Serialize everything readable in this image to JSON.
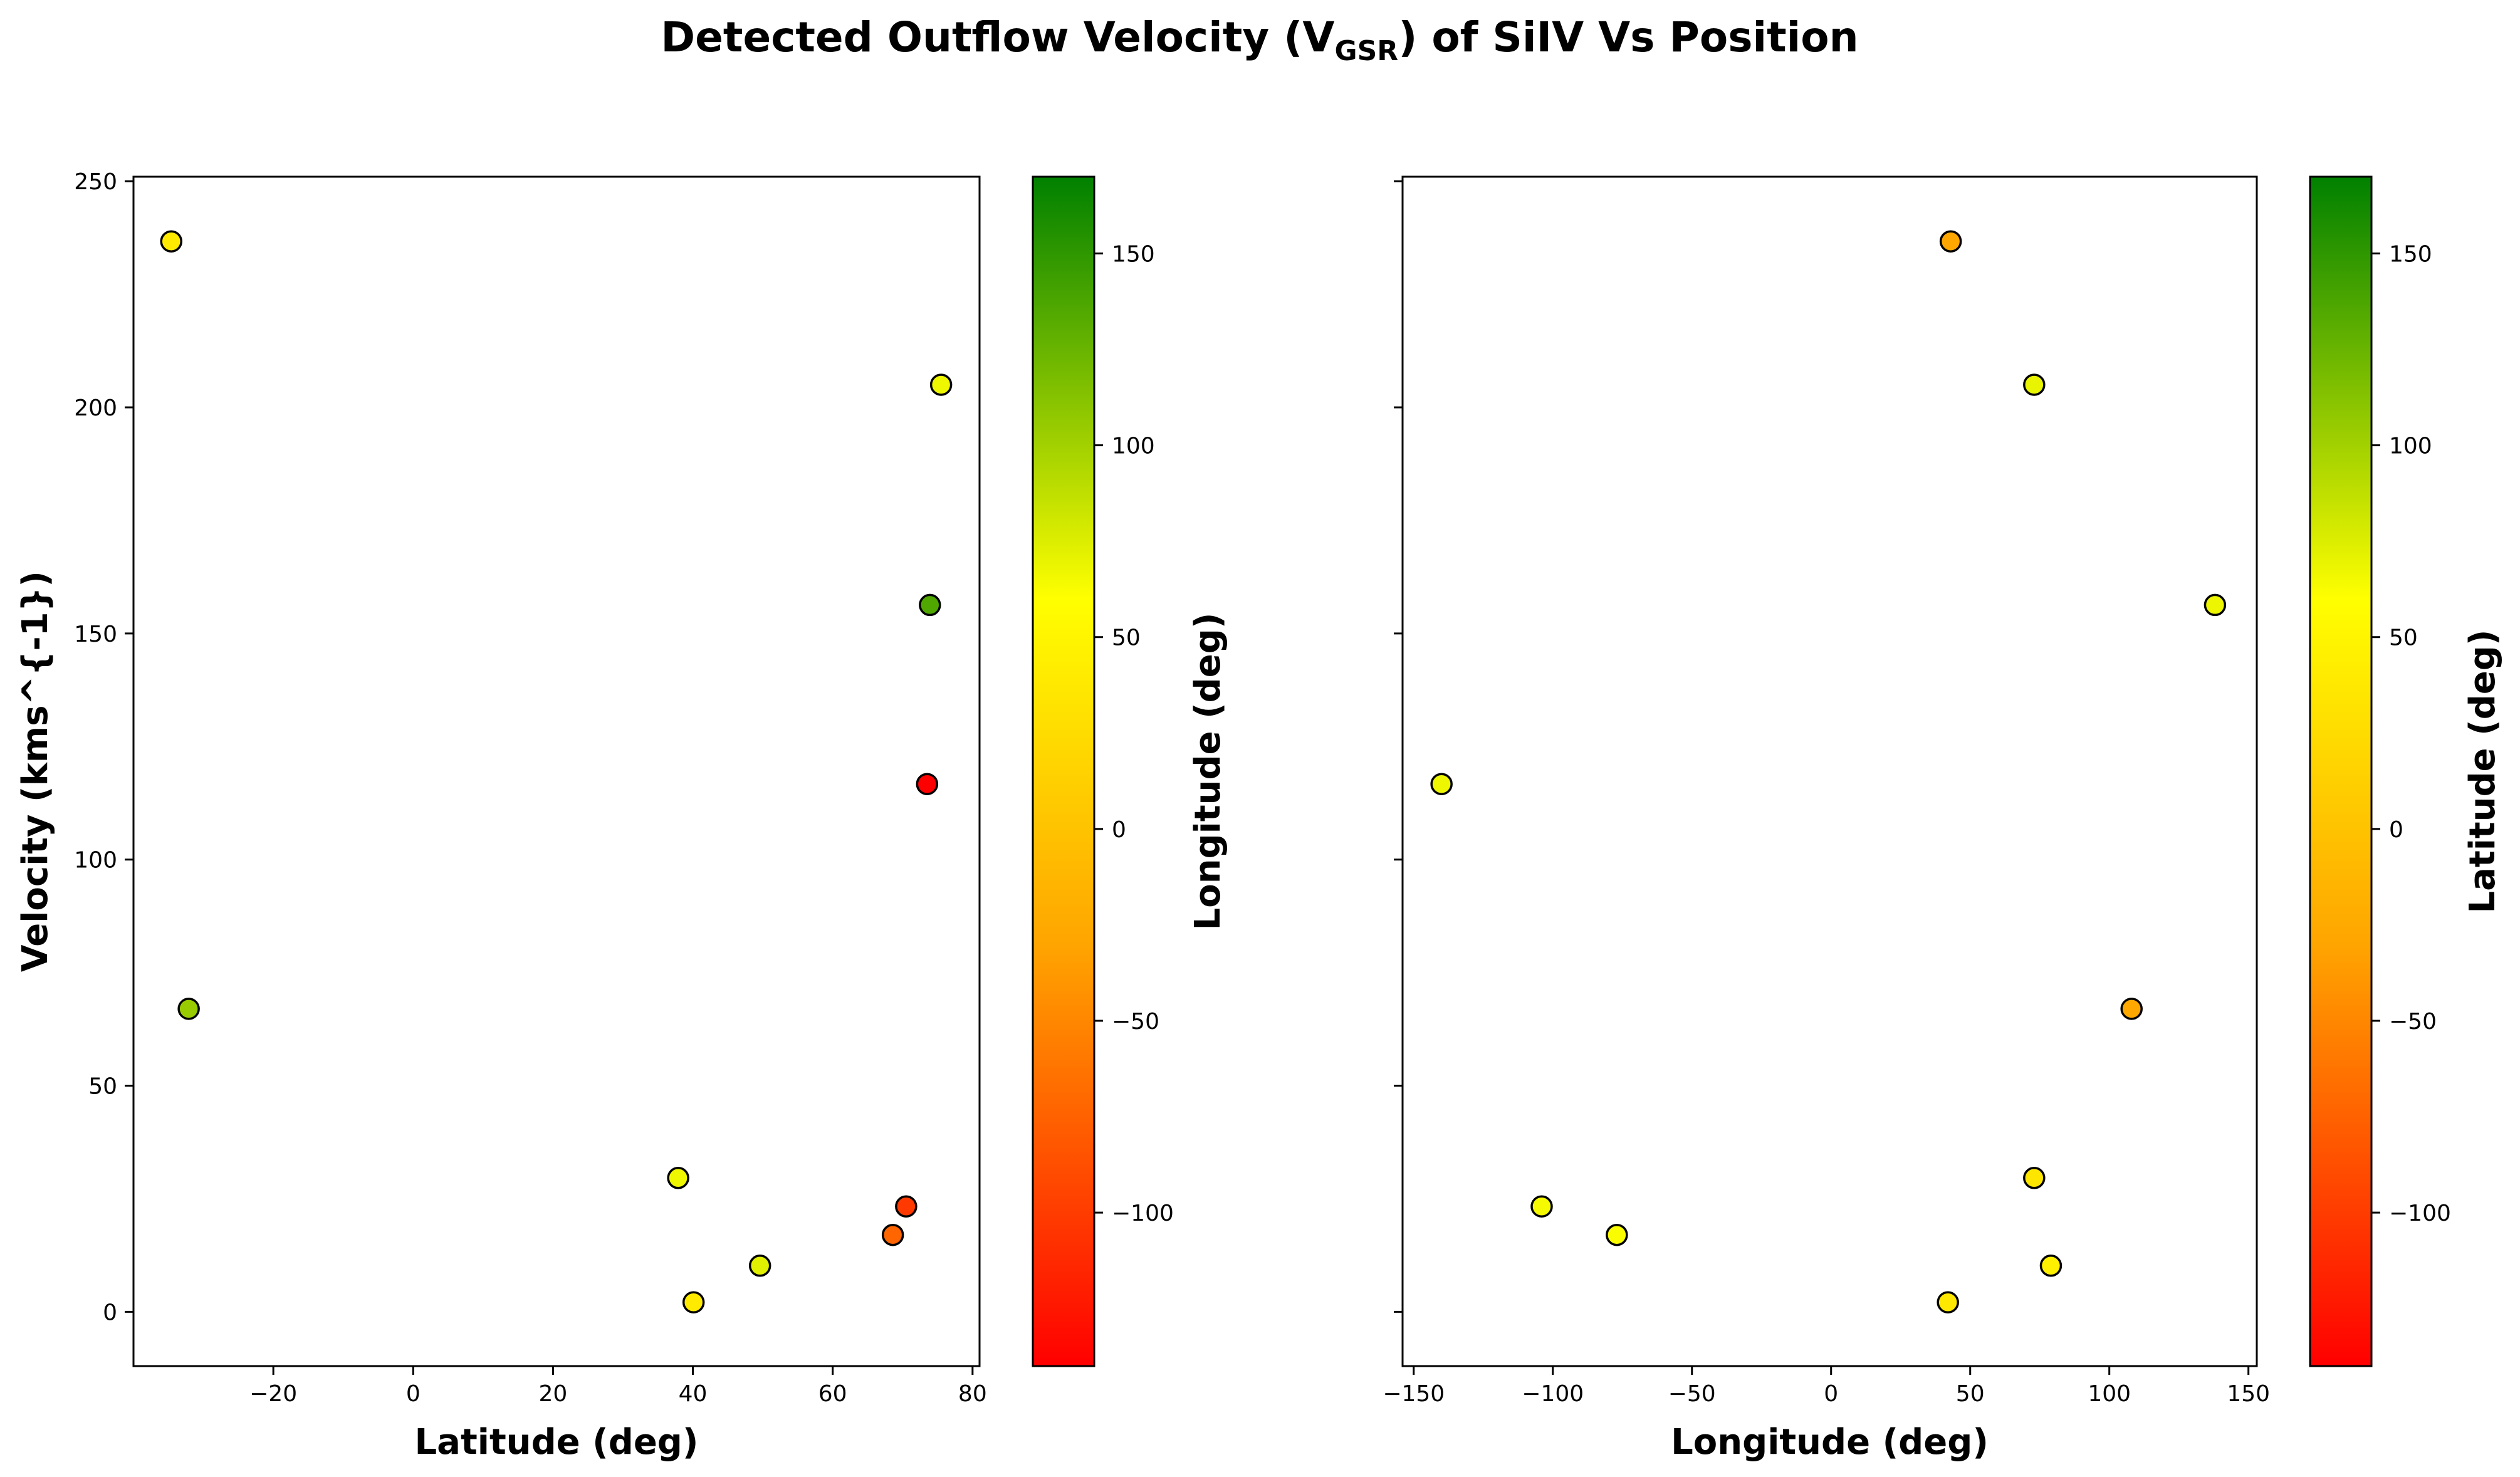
{
  "figure": {
    "title": {
      "prefix": "Detected Outflow Velocity (V",
      "subscript": "GSR",
      "suffix": ") of SiIV Vs Position"
    }
  },
  "colors": {
    "colormap": [
      "#ff0000",
      "#ffa500",
      "#ffff00",
      "#008000"
    ],
    "marker_edge": "#000000"
  },
  "chart_data": [
    {
      "type": "scatter",
      "xlabel": "Latitude (deg)",
      "ylabel": "Velocity (kms^{-1})",
      "xlim": [
        -40,
        81
      ],
      "ylim": [
        -12,
        251
      ],
      "xticks": [
        -20,
        0,
        20,
        40,
        60,
        80
      ],
      "yticks": [
        0,
        50,
        100,
        150,
        200,
        250
      ],
      "grid": false,
      "colorbar": {
        "label": "Longitude (deg)",
        "range": [
          -140,
          170
        ],
        "ticks": [
          -100,
          -50,
          0,
          50,
          100,
          150
        ]
      },
      "points": [
        {
          "x": -34.6,
          "y": 236.7,
          "c": 43
        },
        {
          "x": 75.5,
          "y": 205.0,
          "c": 73
        },
        {
          "x": 73.9,
          "y": 156.3,
          "c": 138
        },
        {
          "x": 73.5,
          "y": 116.7,
          "c": -140
        },
        {
          "x": -32.1,
          "y": 67.0,
          "c": 108
        },
        {
          "x": 37.9,
          "y": 29.6,
          "c": 73
        },
        {
          "x": 70.5,
          "y": 23.3,
          "c": -104
        },
        {
          "x": 68.6,
          "y": 17.0,
          "c": -77
        },
        {
          "x": 49.6,
          "y": 10.2,
          "c": 79
        },
        {
          "x": 40.1,
          "y": 2.1,
          "c": 42
        }
      ]
    },
    {
      "type": "scatter",
      "xlabel": "Longitude (deg)",
      "ylabel": "",
      "xlim": [
        -154,
        153
      ],
      "ylim": [
        -12,
        251
      ],
      "xticks": [
        -150,
        -100,
        -50,
        0,
        50,
        100,
        150
      ],
      "yticks": [
        0,
        50,
        100,
        150,
        200,
        250
      ],
      "shared_y": true,
      "grid": false,
      "colorbar": {
        "label": "Latitude (deg)",
        "range": [
          -140,
          170
        ],
        "ticks": [
          -100,
          -50,
          0,
          50,
          100,
          150
        ]
      },
      "points": [
        {
          "x": 43,
          "y": 236.7,
          "c": -34.6
        },
        {
          "x": 73,
          "y": 205.0,
          "c": 75.5
        },
        {
          "x": 138,
          "y": 156.3,
          "c": 73.9
        },
        {
          "x": -140,
          "y": 116.7,
          "c": 73.5
        },
        {
          "x": 108,
          "y": 67.0,
          "c": -32.1
        },
        {
          "x": 73,
          "y": 29.6,
          "c": 37.9
        },
        {
          "x": -104,
          "y": 23.3,
          "c": 70.5
        },
        {
          "x": -77,
          "y": 17.0,
          "c": 68.6
        },
        {
          "x": 79,
          "y": 10.2,
          "c": 49.6
        },
        {
          "x": 42,
          "y": 2.1,
          "c": 40.1
        }
      ]
    }
  ]
}
